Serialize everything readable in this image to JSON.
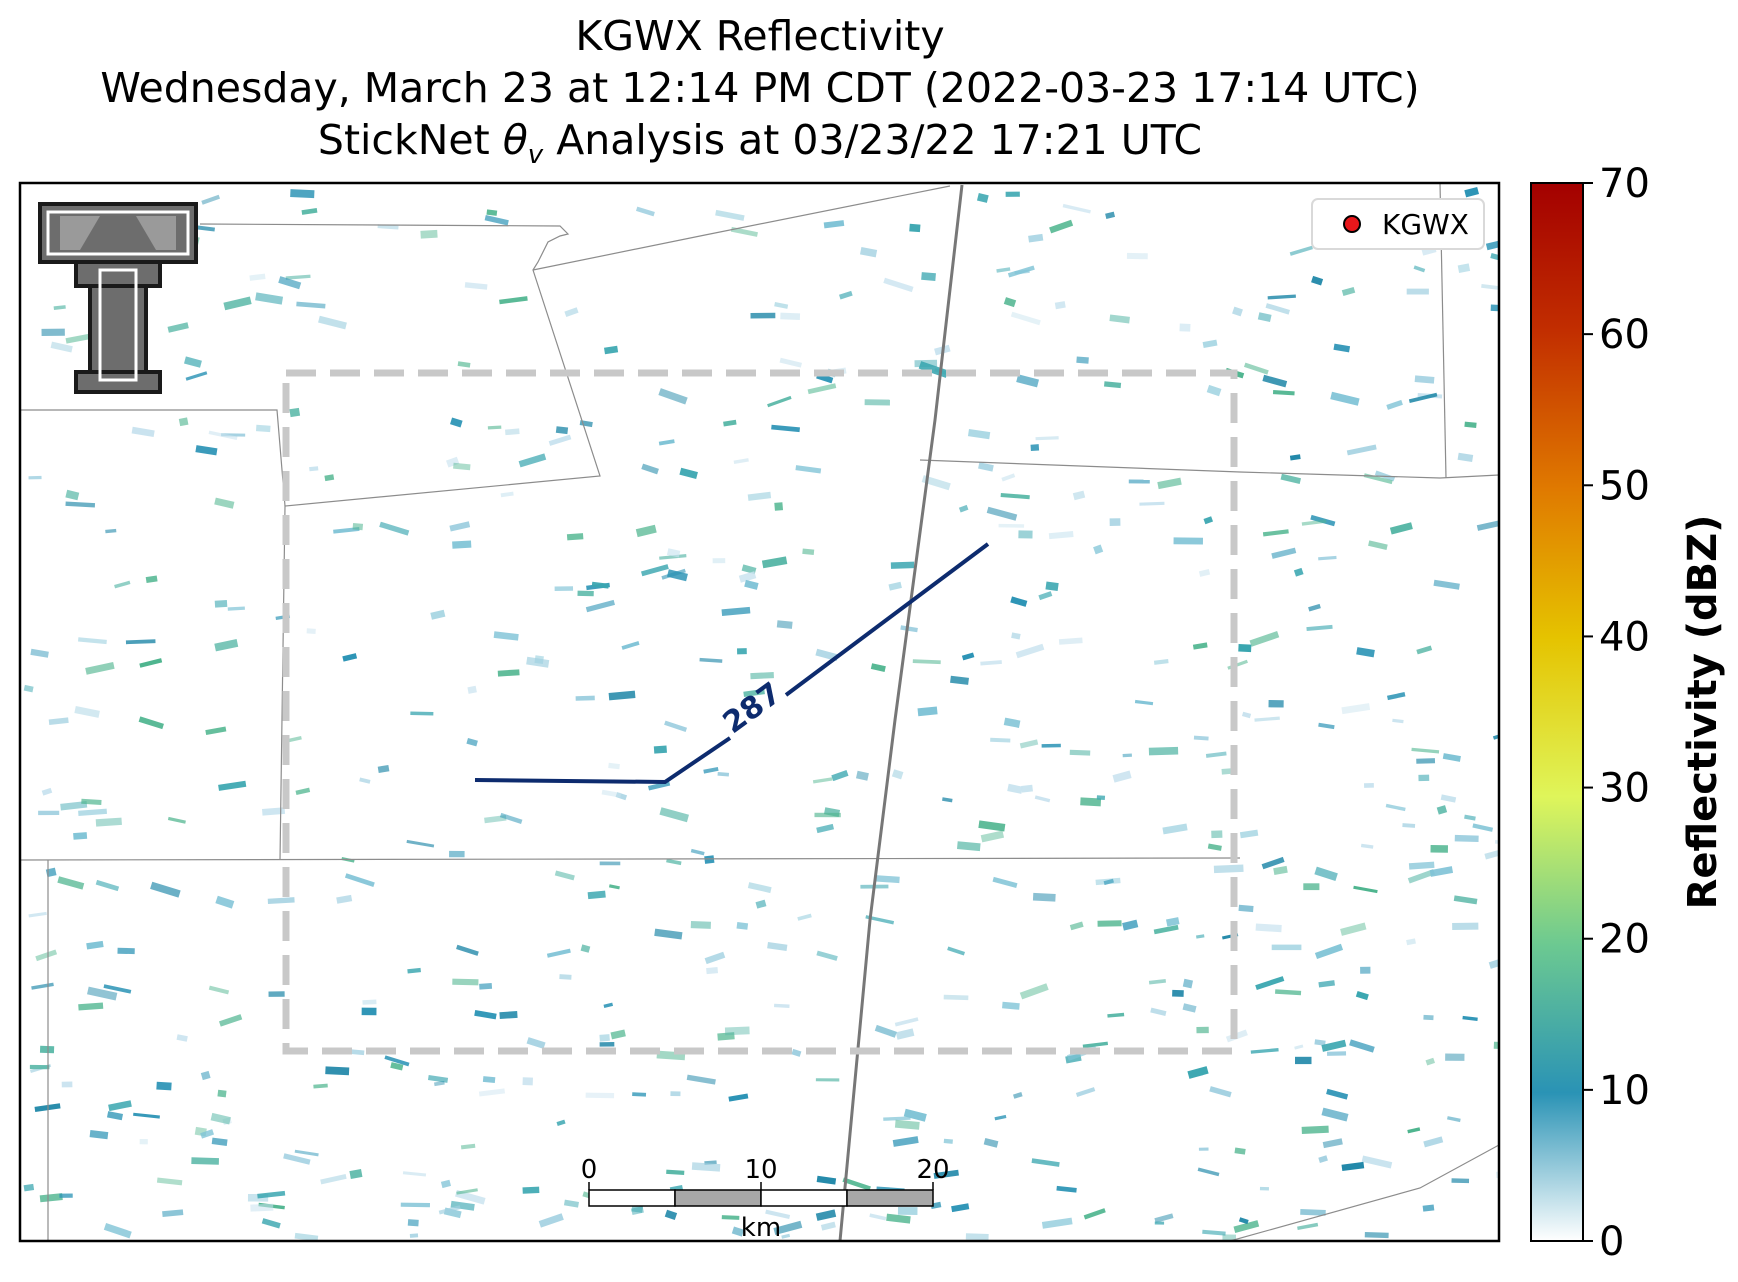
{
  "title": {
    "line1": "KGWX Reflectivity",
    "line2": "Wednesday, March 23 at 12:14 PM CDT (2022-03-23 17:14 UTC)",
    "line3_prefix": "StickNet ",
    "line3_symbol": "θ",
    "line3_subscript": "v",
    "line3_suffix": " Analysis at 03/23/22 17:21 UTC"
  },
  "legend": {
    "label": "KGWX",
    "marker_color": "#e8171b"
  },
  "colorbar": {
    "label": "Reflectivity (dBZ)",
    "ticks": [
      "0",
      "10",
      "20",
      "30",
      "40",
      "50",
      "60",
      "70"
    ],
    "min": 0,
    "max": 70,
    "colors": [
      "#ffffff",
      "#2a93b5",
      "#6cc991",
      "#dff55a",
      "#e5c300",
      "#e07a00",
      "#c22e00",
      "#a30000"
    ]
  },
  "contour": {
    "label": "287",
    "color": "#0d2b6e"
  },
  "scale_bar": {
    "ticks": [
      "0",
      "10",
      "20"
    ],
    "unit": "km"
  },
  "logo": {
    "name": "Texas Tech Double T"
  }
}
